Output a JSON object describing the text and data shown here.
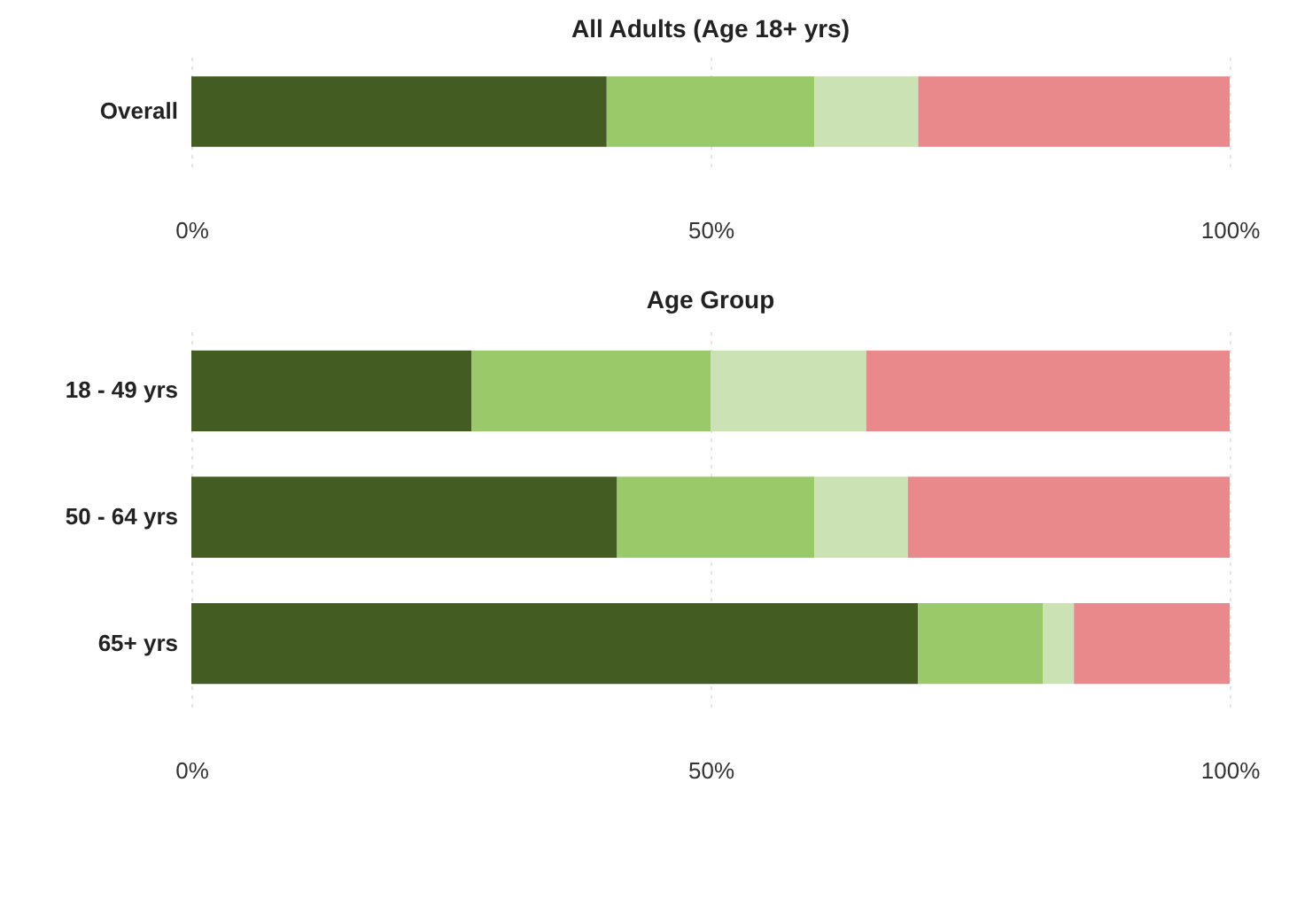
{
  "chart_data": [
    {
      "type": "bar",
      "title": "All Adults (Age 18+ yrs)",
      "orientation": "horizontal",
      "stacked": true,
      "categories": [
        "Overall"
      ],
      "xlim": [
        0,
        100
      ],
      "xticks": [
        {
          "value": 0,
          "label": "0%"
        },
        {
          "value": 50,
          "label": "50%"
        },
        {
          "value": 100,
          "label": "100%"
        }
      ],
      "grid": "x",
      "series": [
        {
          "color": "#435c22",
          "values": [
            40
          ]
        },
        {
          "color": "#9ac96a",
          "values": [
            20
          ]
        },
        {
          "color": "#cbe2b4",
          "values": [
            10
          ]
        },
        {
          "color": "#e9898c",
          "values": [
            30
          ]
        }
      ]
    },
    {
      "type": "bar",
      "title": "Age Group",
      "orientation": "horizontal",
      "stacked": true,
      "categories": [
        "18 - 49 yrs",
        "50 - 64 yrs",
        "65+ yrs"
      ],
      "xlim": [
        0,
        100
      ],
      "xticks": [
        {
          "value": 0,
          "label": "0%"
        },
        {
          "value": 50,
          "label": "50%"
        },
        {
          "value": 100,
          "label": "100%"
        }
      ],
      "grid": "x",
      "series": [
        {
          "color": "#435c22",
          "values": [
            27,
            41,
            70
          ]
        },
        {
          "color": "#9ac96a",
          "values": [
            23,
            19,
            12
          ]
        },
        {
          "color": "#cbe2b4",
          "values": [
            15,
            9,
            3
          ]
        },
        {
          "color": "#e9898c",
          "values": [
            35,
            31,
            15
          ]
        }
      ]
    }
  ]
}
